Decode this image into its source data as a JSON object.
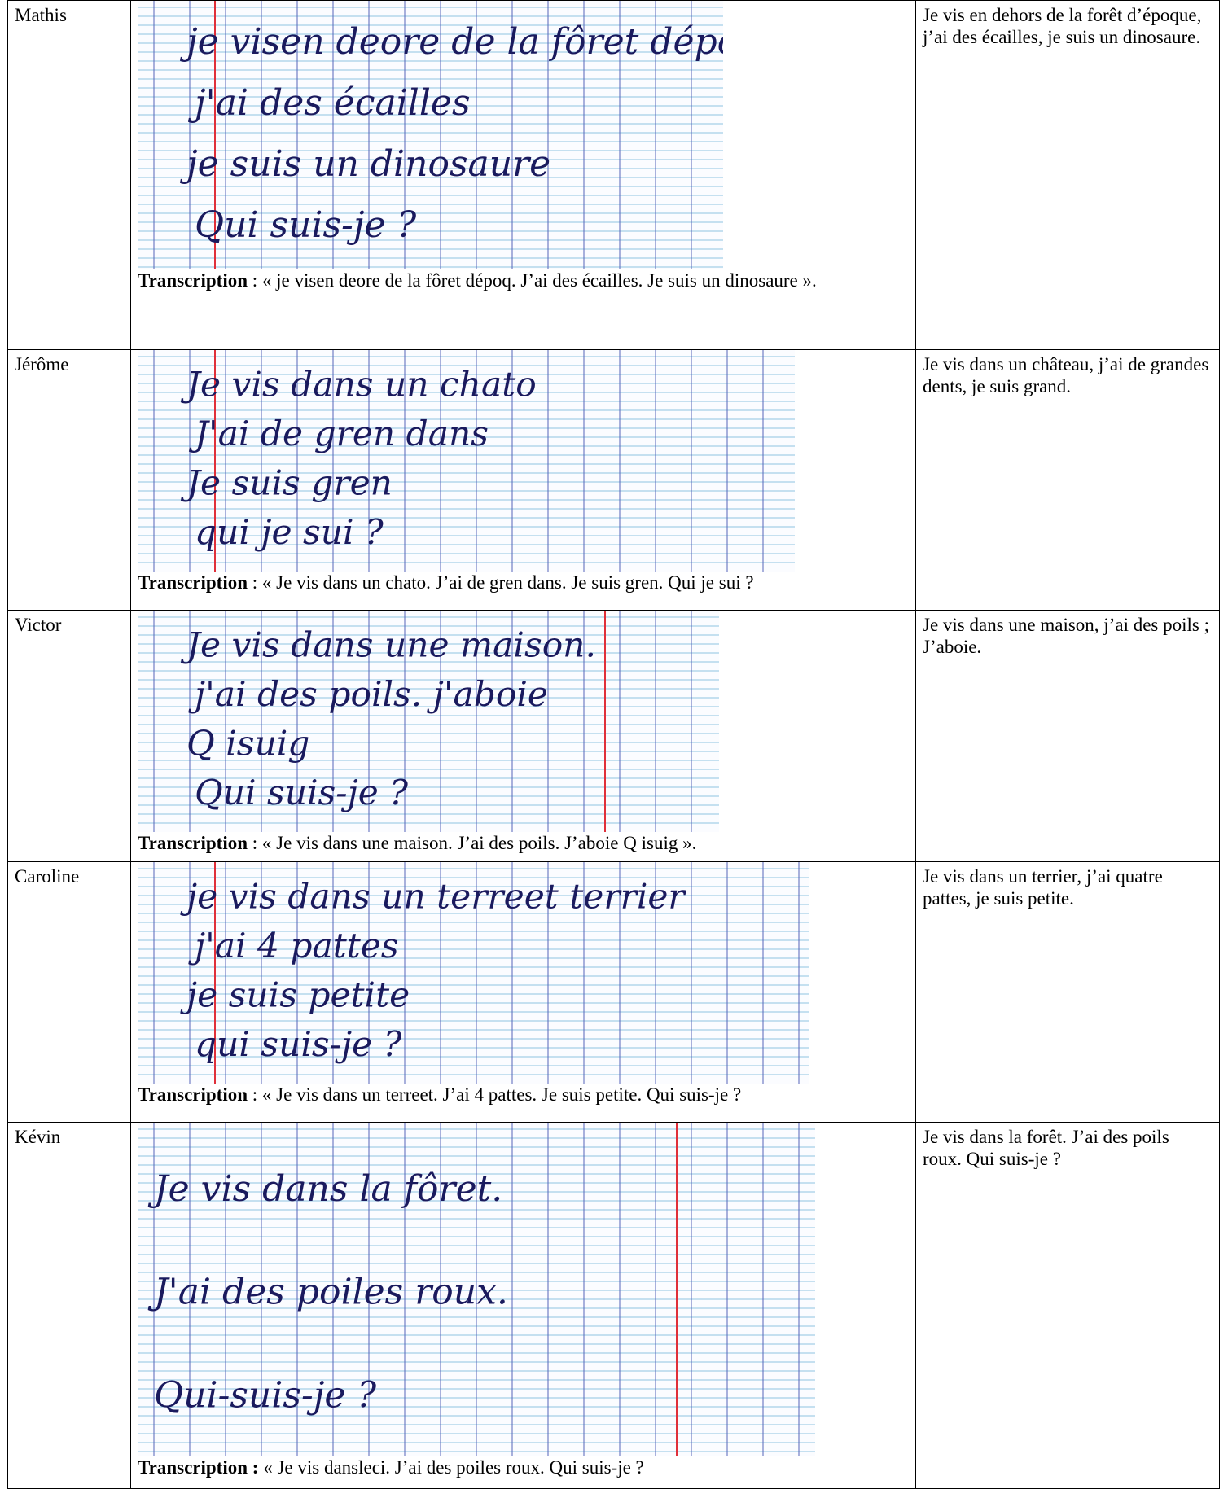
{
  "rows": [
    {
      "name": "Mathis",
      "handwriting": [
        "je visen deore de la fôret dépoq",
        "j'ai des écailles",
        "je suis un dinosaure",
        "Qui suis-je ?"
      ],
      "transcription_label": "Transcription",
      "transcription": " : « je visen deore de la fôret dépoq. J’ai des écailles. Je suis un dinosaure ».",
      "description": "Je vis en dehors de la forêt d’époque, j’ai des écailles, je suis un dinosaure."
    },
    {
      "name": "Jérôme",
      "handwriting": [
        "Je vis dans un chato",
        "J'ai de gren dans",
        "Je suis gren",
        "qui je sui ?"
      ],
      "transcription_label": "Transcription",
      "transcription": " : « Je vis dans un chato. J’ai de gren dans. Je suis gren. Qui je sui ?",
      "description": "Je vis dans un château, j’ai de grandes dents, je suis grand."
    },
    {
      "name": "Victor",
      "handwriting": [
        "Je vis dans une maison.",
        "j'ai des poils. j'aboie",
        "Q isuig",
        "Qui suis-je ?"
      ],
      "transcription_label": "Transcription",
      "transcription": " : « Je vis dans une maison. J’ai des poils. J’aboie Q isuig ».",
      "description": "Je vis dans une maison, j’ai des poils ; J’aboie."
    },
    {
      "name": "Caroline",
      "handwriting": [
        "je vis dans un terreet terrier",
        "j'ai 4 pattes",
        "je suis petite",
        "qui suis-je ?"
      ],
      "transcription_label": "Transcription",
      "transcription": " : « Je vis dans un terreet. J’ai 4 pattes. Je suis petite. Qui suis-je ?",
      "description": "Je vis dans un terrier, j’ai quatre pattes, je suis petite."
    },
    {
      "name": "Kévin",
      "handwriting": [
        "Je vis dans la fôret.",
        "J'ai des poiles roux.",
        "Qui-suis-je ?"
      ],
      "transcription_label": "Transcription :",
      "transcription": " « Je vis dansleci. J’ai des poiles roux. Qui suis-je ?",
      "description": "Je vis dans la forêt. J’ai des poils roux. Qui suis-je ?"
    }
  ]
}
